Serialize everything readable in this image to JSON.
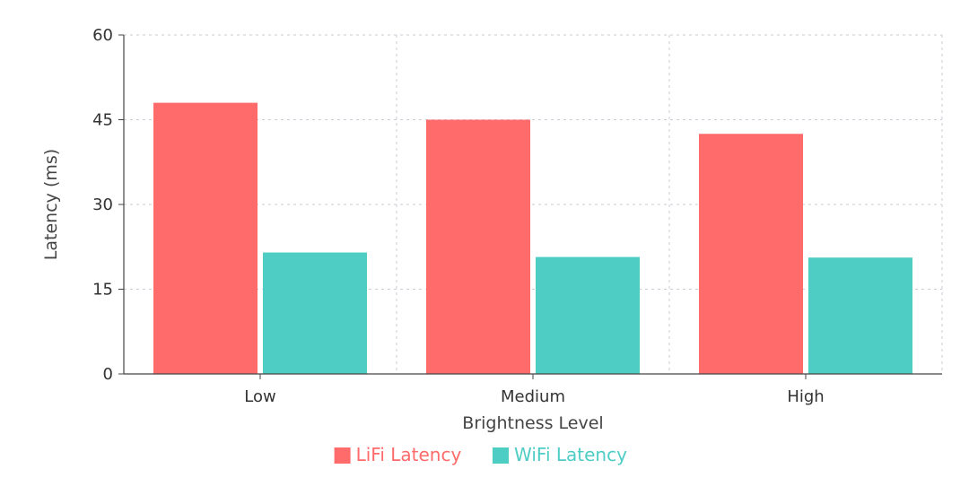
{
  "chart_data": {
    "type": "bar",
    "title": "",
    "xlabel": "Brightness Level",
    "ylabel": "Latency (ms)",
    "categories": [
      "Low",
      "Medium",
      "High"
    ],
    "ylim": [
      0,
      60
    ],
    "yticks": [
      0,
      15,
      30,
      45,
      60
    ],
    "grid": true,
    "legend_position": "bottom-center",
    "series": [
      {
        "name": "LiFi Latency",
        "color": "#ff6b6b",
        "values": [
          48.0,
          45.0,
          42.5
        ]
      },
      {
        "name": "WiFi Latency",
        "color": "#4ecdc4",
        "values": [
          21.5,
          20.7,
          20.6
        ]
      }
    ]
  }
}
